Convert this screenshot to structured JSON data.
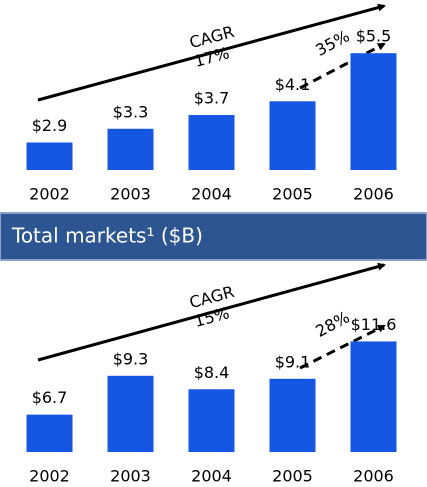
{
  "chart_data": [
    {
      "type": "bar",
      "categories": [
        "2002",
        "2003",
        "2004",
        "2005",
        "2006"
      ],
      "values": [
        2.9,
        3.3,
        3.7,
        4.1,
        5.5
      ],
      "value_labels": [
        "$2.9",
        "$3.3",
        "$3.7",
        "$4.1",
        "$5.5"
      ],
      "color": "#1557e3",
      "ylim": [
        2.1,
        6
      ],
      "annotations": [
        "CAGR",
        "17%",
        "35%"
      ]
    },
    {
      "type": "bar",
      "title": "Total markets¹ ($B)",
      "categories": [
        "2002",
        "2003",
        "2004",
        "2005",
        "2006"
      ],
      "values": [
        6.7,
        9.3,
        8.4,
        9.1,
        11.6
      ],
      "value_labels": [
        "$6.7",
        "$9.3",
        "$8.4",
        "$9.1",
        "$11.6"
      ],
      "color": "#1557e3",
      "ylim": [
        4.2,
        12.5
      ],
      "annotations": [
        "CAGR",
        "15%",
        "28%"
      ]
    }
  ]
}
